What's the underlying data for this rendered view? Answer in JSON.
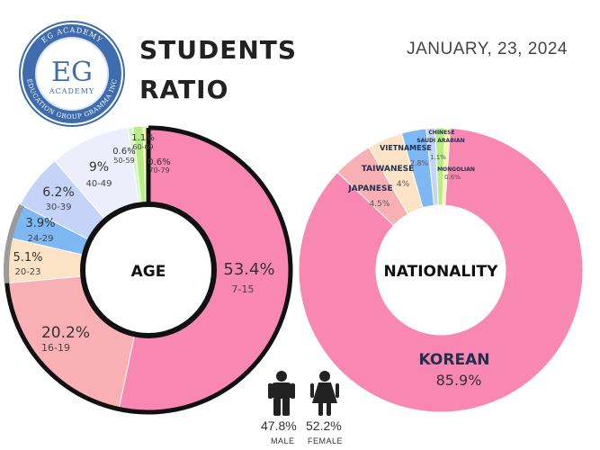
{
  "header": {
    "logo": {
      "top_text": "EG ACADEMY",
      "monogram": "EG",
      "subtitle": "ACADEMY",
      "ring_text": "EDUCATION GROUP GRAMMA INC"
    },
    "title_line1": "STUDENTS",
    "title_line2": "RATIO",
    "date": "JANUARY, 23, 2024"
  },
  "chart_data": [
    {
      "type": "pie",
      "center_label": "AGE",
      "slices": [
        {
          "label": "7-15",
          "percent": "53.4%",
          "value": 53.4,
          "color": "#f887b2"
        },
        {
          "label": "16-19",
          "percent": "20.2%",
          "value": 20.2,
          "color": "#f9b0b5"
        },
        {
          "label": "20-23",
          "percent": "5.1%",
          "value": 5.1,
          "color": "#fde3c6"
        },
        {
          "label": "24-29",
          "percent": "3.9%",
          "value": 3.9,
          "color": "#7db8f4"
        },
        {
          "label": "30-39",
          "percent": "6.2%",
          "value": 6.2,
          "color": "#c6d3f8"
        },
        {
          "label": "40-49",
          "percent": "9%",
          "value": 9.0,
          "color": "#eceefc"
        },
        {
          "label": "50-59",
          "percent": "0.6%",
          "value": 0.6,
          "color": "#d9f7c8"
        },
        {
          "label": "60-69",
          "percent": "1.1%",
          "value": 1.1,
          "color": "#b6ee82"
        },
        {
          "label": "70-79",
          "percent": "0.6%",
          "value": 0.6,
          "color": "#fff4a8"
        }
      ]
    },
    {
      "type": "pie",
      "center_label": "NATIONALITY",
      "slices": [
        {
          "label": "KOREAN",
          "percent": "85.9%",
          "value": 85.9,
          "color": "#f887b2"
        },
        {
          "label": "JAPANESE",
          "percent": "4.5%",
          "value": 4.5,
          "color": "#f9b0b5"
        },
        {
          "label": "TAIWANESE",
          "percent": "4%",
          "value": 4.0,
          "color": "#fde3c6"
        },
        {
          "label": "VIETNAMESE",
          "percent": "2.8%",
          "value": 2.8,
          "color": "#7db8f4"
        },
        {
          "label": "CHINESE",
          "percent": "",
          "value": 1.0,
          "color": "#c6d3f8"
        },
        {
          "label": "SAUDI ARABIAN",
          "percent": "1.1%",
          "value": 1.1,
          "color": "#b6ee82"
        },
        {
          "label": "MONGOLIAN",
          "percent": "0.6%",
          "value": 0.6,
          "color": "#fff4a8"
        }
      ]
    }
  ],
  "gender": {
    "male": {
      "percent": "47.8%",
      "label": "MALE"
    },
    "female": {
      "percent": "52.2%",
      "label": "FEMALE"
    }
  }
}
